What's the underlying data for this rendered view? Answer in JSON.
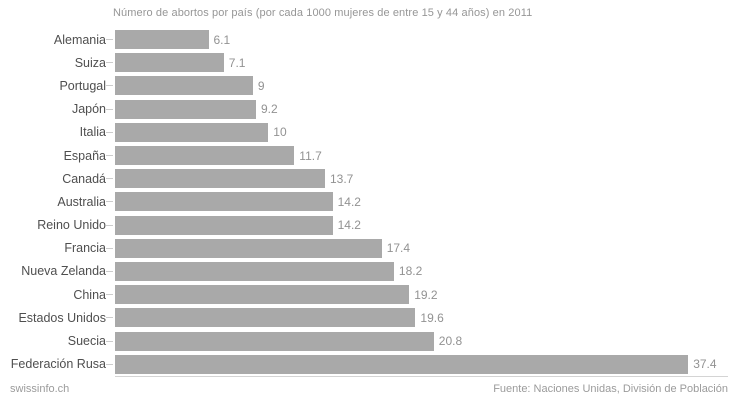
{
  "title": "Número de abortos por país (por cada 1000 mujeres de entre 15 y 44 años) en 2011",
  "chart_data": {
    "type": "bar",
    "orientation": "horizontal",
    "categories": [
      "Alemania",
      "Suiza",
      "Portugal",
      "Japón",
      "Italia",
      "España",
      "Canadá",
      "Australia",
      "Reino Unido",
      "Francia",
      "Nueva Zelanda",
      "China",
      "Estados Unidos",
      "Suecia",
      "Federación Rusa"
    ],
    "values": [
      6.1,
      7.1,
      9,
      9.2,
      10,
      11.7,
      13.7,
      14.2,
      14.2,
      17.4,
      18.2,
      19.2,
      19.6,
      20.8,
      37.4
    ],
    "value_labels": [
      "6.1",
      "7.1",
      "9",
      "9.2",
      "10",
      "11.7",
      "13.7",
      "14.2",
      "14.2",
      "17.4",
      "18.2",
      "19.2",
      "19.6",
      "20.8",
      "37.4"
    ],
    "xlim": [
      0,
      40
    ],
    "bar_color": "#a9a9a9",
    "grid": false,
    "legend": false,
    "value_labels_position": "right-of-bar"
  },
  "footer": {
    "brand": "swissinfo.ch",
    "source": "Fuente: Naciones Unidas, División de Población"
  }
}
